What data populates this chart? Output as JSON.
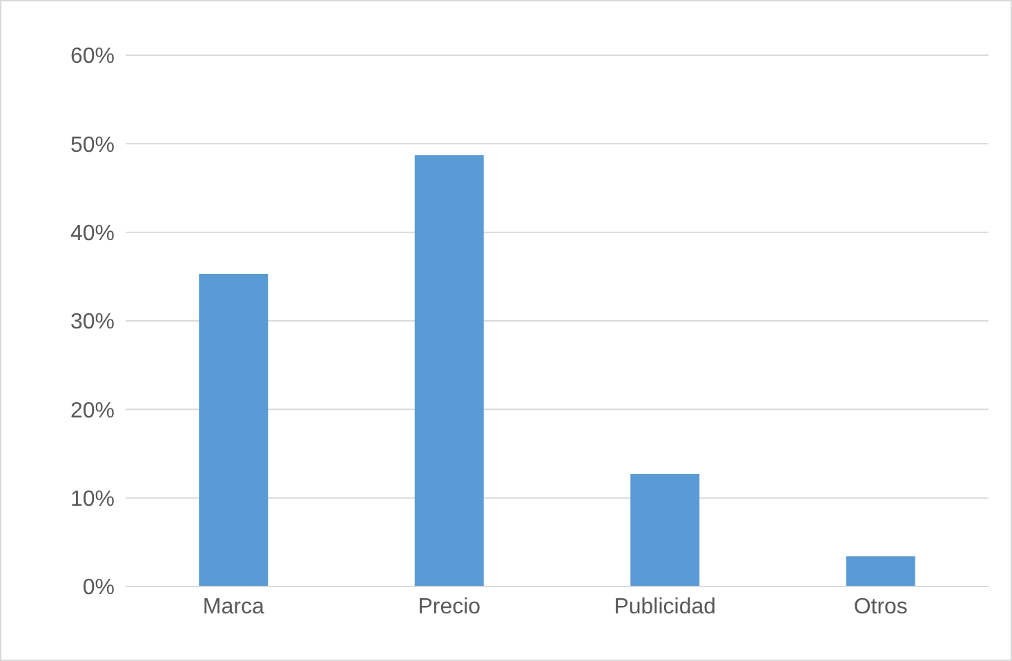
{
  "chart_data": {
    "type": "bar",
    "categories": [
      "Marca",
      "Precio",
      "Publicidad",
      "Otros"
    ],
    "values": [
      35.3,
      48.7,
      12.7,
      3.4
    ],
    "color": "#5b9bd5",
    "ylim": [
      0,
      60
    ],
    "yticks": [
      {
        "value": 0,
        "label": "0%"
      },
      {
        "value": 10,
        "label": "10%"
      },
      {
        "value": 20,
        "label": "20%"
      },
      {
        "value": 30,
        "label": "30%"
      },
      {
        "value": 40,
        "label": "40%"
      },
      {
        "value": 50,
        "label": "50%"
      },
      {
        "value": 60,
        "label": "60%"
      }
    ],
    "grid": "y",
    "legend": false
  }
}
